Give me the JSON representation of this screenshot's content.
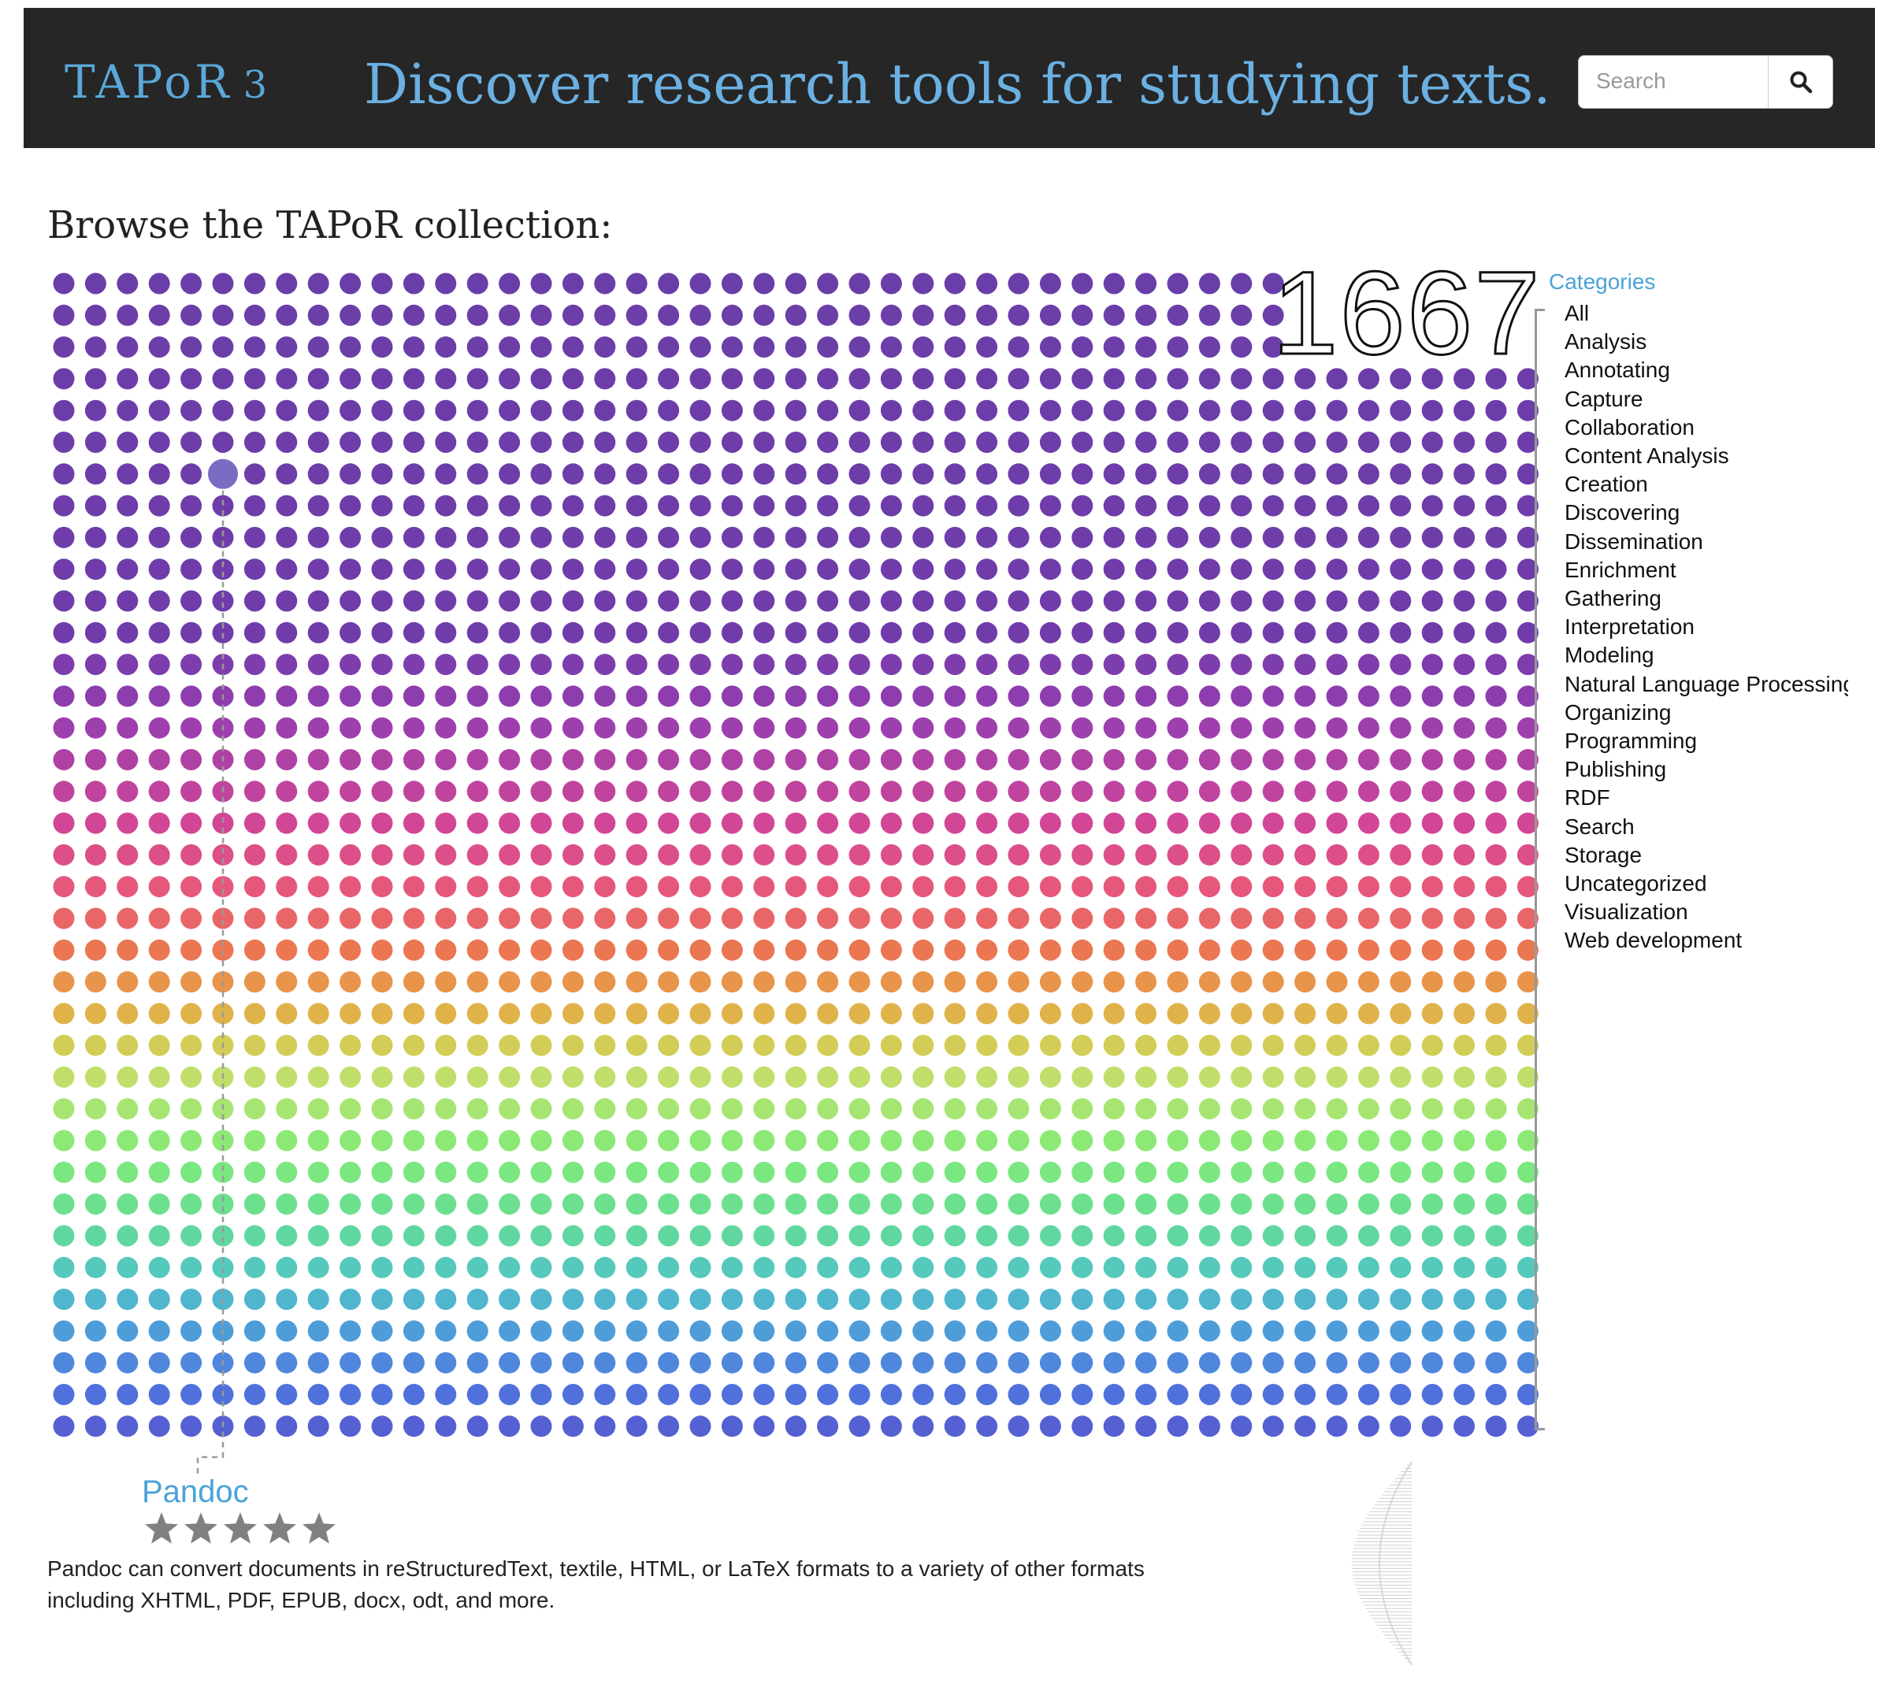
{
  "header": {
    "logo": "TAPoR",
    "logo_version": "3",
    "tagline": "Discover research tools for studying texts.",
    "search": {
      "placeholder": "Search",
      "value": ""
    },
    "search_icon": "search-icon"
  },
  "browse": {
    "title": "Browse the TAPoR collection:",
    "count": "1667"
  },
  "categories": {
    "title": "Categories",
    "items": [
      "All",
      "Analysis",
      "Annotating",
      "Capture",
      "Collaboration",
      "Content Analysis",
      "Creation",
      "Discovering",
      "Dissemination",
      "Enrichment",
      "Gathering",
      "Interpretation",
      "Modeling",
      "Natural Language Processing",
      "Organizing",
      "Programming",
      "Publishing",
      "RDF",
      "Search",
      "Storage",
      "Uncategorized",
      "Visualization",
      "Web development"
    ]
  },
  "selected_tool": {
    "name": "Pandoc",
    "rating": 5,
    "max_rating": 5,
    "description": "Pandoc can convert documents in reStructuredText, textile, HTML, or LaTeX formats to a variety of other formats including XHTML, PDF, EPUB, docx, odt, and more."
  },
  "colors": {
    "header_bg": "#262626",
    "accent": "#4aa3d8",
    "star": "#808080"
  }
}
